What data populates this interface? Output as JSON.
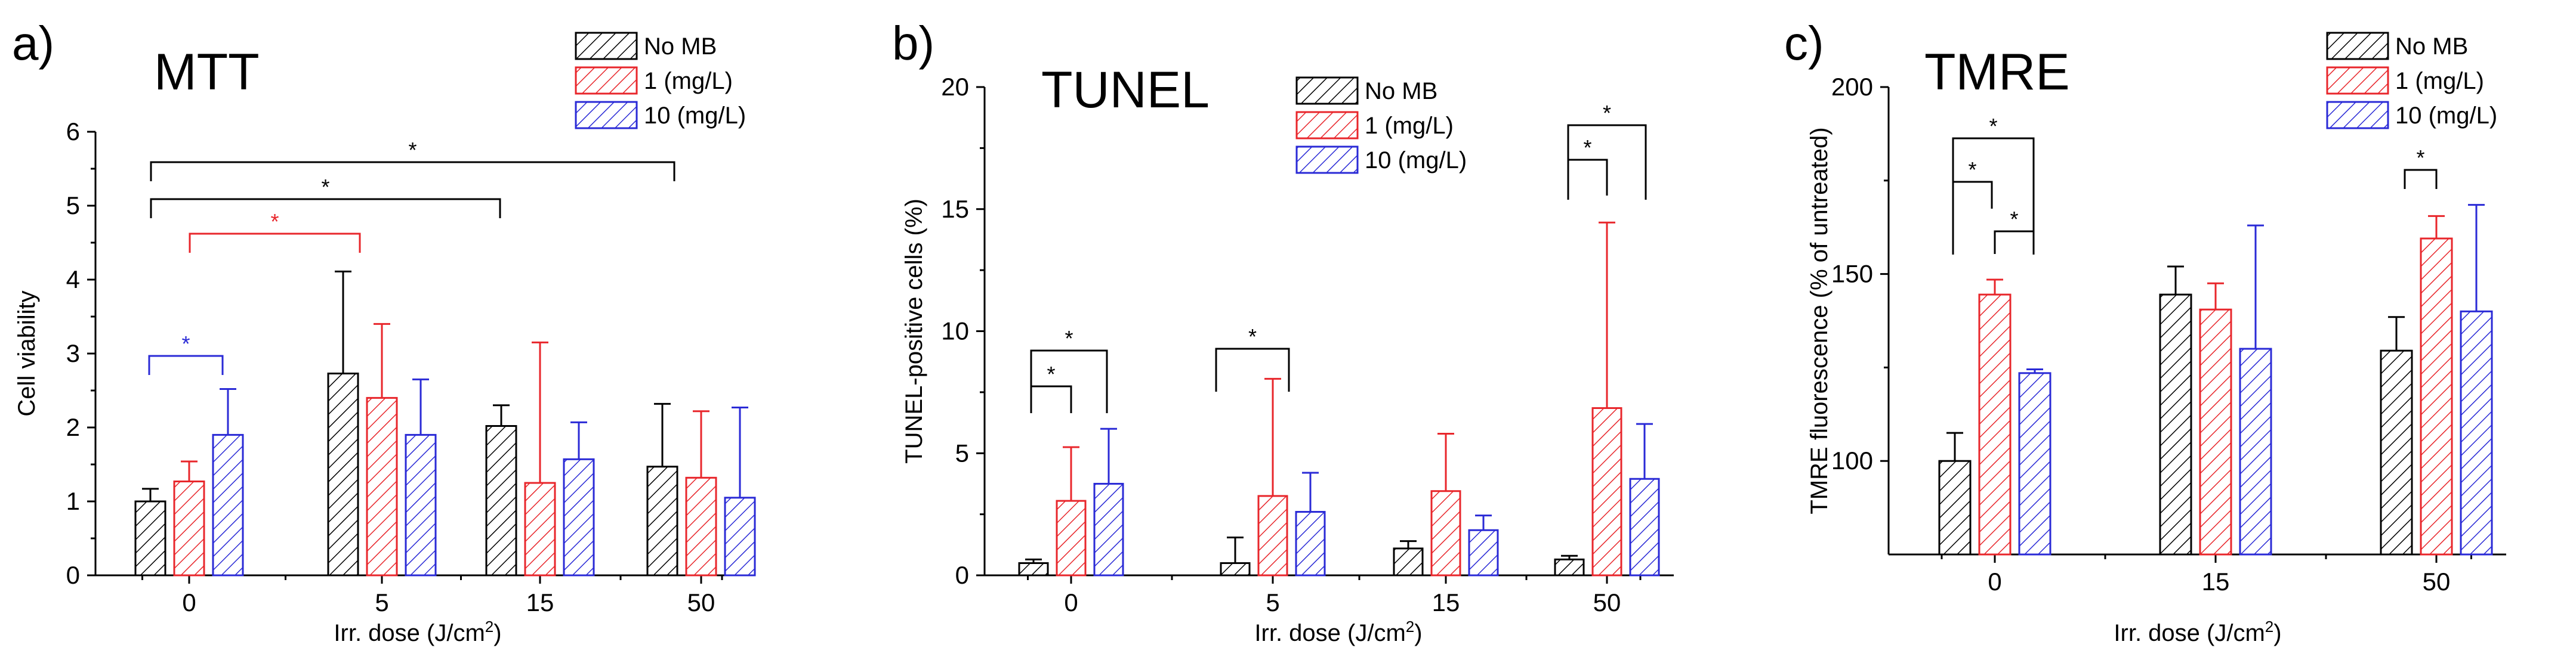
{
  "chart_data": [
    {
      "type": "bar",
      "panel_label": "a)",
      "title": "MTT",
      "xlabel": "Irr. dose (J/cm",
      "xlabel_sup": "2",
      "xlabel_tail": ")",
      "ylabel": "Cell viability",
      "ylim": [
        0,
        6
      ],
      "yticks": [
        "0",
        "1",
        "2",
        "3",
        "4",
        "5",
        "6"
      ],
      "categories": [
        "0",
        "5",
        "15",
        "50"
      ],
      "series": [
        {
          "name": "No MB",
          "color": "#000000",
          "values": [
            1.0,
            2.73,
            2.02,
            1.47
          ],
          "errors": [
            0.17,
            1.38,
            0.28,
            0.85
          ]
        },
        {
          "name": "1 (mg/L)",
          "color": "#e8262b",
          "values": [
            1.27,
            2.4,
            1.25,
            1.32
          ],
          "errors": [
            0.27,
            1.0,
            1.9,
            0.9
          ]
        },
        {
          "name": "10 (mg/L)",
          "color": "#2a2ad6",
          "values": [
            1.9,
            1.9,
            1.57,
            1.05
          ],
          "errors": [
            0.62,
            0.75,
            0.5,
            1.22
          ]
        }
      ],
      "annotations": [
        {
          "text": "*",
          "color": "#2a2ad6"
        },
        {
          "text": "*",
          "color": "#e8262b"
        },
        {
          "text": "*",
          "color": "#000000"
        },
        {
          "text": "*",
          "color": "#000000"
        }
      ]
    },
    {
      "type": "bar",
      "panel_label": "b)",
      "title": "TUNEL",
      "xlabel": "Irr. dose (J/cm",
      "xlabel_sup": "2",
      "xlabel_tail": ")",
      "ylabel": "TUNEL-positive cells (%)",
      "ylim": [
        0,
        20
      ],
      "yticks": [
        "0",
        "5",
        "10",
        "15",
        "20"
      ],
      "categories": [
        "0",
        "5",
        "15",
        "50"
      ],
      "series": [
        {
          "name": "No MB",
          "color": "#000000",
          "values": [
            0.5,
            0.5,
            1.1,
            0.65
          ],
          "errors": [
            0.15,
            1.05,
            0.3,
            0.15
          ]
        },
        {
          "name": "1 (mg/L)",
          "color": "#e8262b",
          "values": [
            3.05,
            3.25,
            3.45,
            6.85
          ],
          "errors": [
            2.2,
            4.8,
            2.35,
            7.6
          ]
        },
        {
          "name": "10 (mg/L)",
          "color": "#2a2ad6",
          "values": [
            3.75,
            2.6,
            1.85,
            3.95
          ],
          "errors": [
            2.25,
            1.6,
            0.6,
            2.25
          ]
        }
      ],
      "annotations": [
        {
          "text": "*",
          "color": "#000000"
        },
        {
          "text": "*",
          "color": "#000000"
        },
        {
          "text": "*",
          "color": "#000000"
        },
        {
          "text": "*",
          "color": "#000000"
        },
        {
          "text": "*",
          "color": "#000000"
        }
      ]
    },
    {
      "type": "bar",
      "panel_label": "c)",
      "title": "TMRE",
      "xlabel": "Irr. dose (J/cm",
      "xlabel_sup": "2",
      "xlabel_tail": ")",
      "ylabel": "TMRE fluorescence (% of untreated)",
      "ylim": [
        75,
        200
      ],
      "yticks": [
        "100",
        "150",
        "200"
      ],
      "categories": [
        "0",
        "15",
        "50"
      ],
      "series": [
        {
          "name": "No MB",
          "color": "#000000",
          "values": [
            100,
            144.5,
            129.5
          ],
          "errors": [
            7.5,
            7.5,
            9
          ]
        },
        {
          "name": "1 (mg/L)",
          "color": "#e8262b",
          "values": [
            144.5,
            140.5,
            159.5
          ],
          "errors": [
            4,
            7,
            6
          ]
        },
        {
          "name": "10 (mg/L)",
          "color": "#2a2ad6",
          "values": [
            123.5,
            130,
            140
          ],
          "errors": [
            1,
            33,
            28.5
          ]
        }
      ],
      "annotations": [
        {
          "text": "*",
          "color": "#000000"
        },
        {
          "text": "*",
          "color": "#000000"
        },
        {
          "text": "*",
          "color": "#000000"
        },
        {
          "text": "*",
          "color": "#000000"
        }
      ]
    }
  ]
}
